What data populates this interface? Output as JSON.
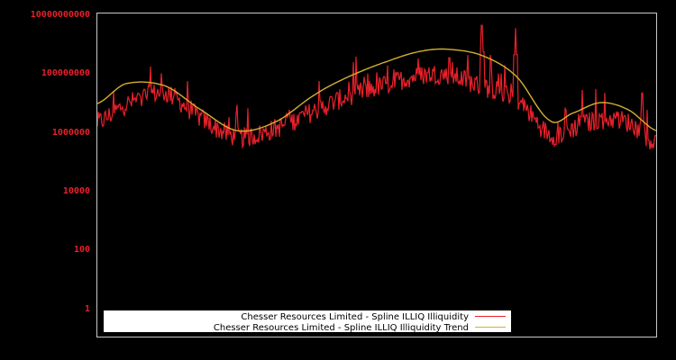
{
  "chart_data": {
    "type": "line",
    "title": "",
    "xlabel": "",
    "ylabel": "",
    "yscale": "log",
    "ylim": [
      0.5,
      10000000000
    ],
    "grid": false,
    "legend_position": "lower-left",
    "background": "#000000",
    "frame_color": "#c8c8c8",
    "y_ticks": [
      {
        "label": "10000000000",
        "value": 10000000000
      },
      {
        "label": "100000000",
        "value": 100000000
      },
      {
        "label": "1000000",
        "value": 1000000
      },
      {
        "label": "10000",
        "value": 10000
      },
      {
        "label": "100",
        "value": 100
      },
      {
        "label": "1",
        "value": 1
      }
    ],
    "x": [
      0,
      0.05,
      0.12,
      0.18,
      0.25,
      0.32,
      0.39,
      0.45,
      0.52,
      0.58,
      0.63,
      0.69,
      0.75,
      0.81,
      0.85,
      0.9,
      0.95,
      1.0
    ],
    "series": [
      {
        "name": "Chesser Resources Limited - Spline ILLIQ Illiquidity",
        "color": "#e8202a",
        "log10_values": [
          6.3,
          6.9,
          7.3,
          6.5,
          5.8,
          6.1,
          6.7,
          7.2,
          7.6,
          7.9,
          7.9,
          7.5,
          7.1,
          5.9,
          6.1,
          6.4,
          6.3,
          5.6
        ],
        "spikes": [
          {
            "x": 0.095,
            "log10": 8.2
          },
          {
            "x": 0.25,
            "log10": 6.9
          },
          {
            "x": 0.5,
            "log10": 8.0
          },
          {
            "x": 0.63,
            "log10": 8.5
          },
          {
            "x": 0.688,
            "log10": 9.6
          },
          {
            "x": 0.748,
            "log10": 9.5
          },
          {
            "x": 0.868,
            "log10": 7.4
          },
          {
            "x": 0.975,
            "log10": 7.3
          }
        ]
      },
      {
        "name": "Chesser Resources Limited - Spline ILLIQ Illiquidity Trend",
        "color": "#d4b030",
        "log10_values": [
          6.94,
          7.61,
          7.55,
          6.79,
          6.02,
          6.33,
          7.25,
          7.86,
          8.38,
          8.72,
          8.78,
          8.56,
          7.86,
          6.36,
          6.61,
          6.97,
          6.73,
          6.02
        ]
      }
    ]
  },
  "legend": {
    "items": [
      {
        "label": "Chesser Resources Limited - Spline ILLIQ Illiquidity",
        "color": "#e8202a"
      },
      {
        "label": "Chesser Resources Limited - Spline ILLIQ Illiquidity Trend",
        "color": "#d4b030"
      }
    ]
  }
}
